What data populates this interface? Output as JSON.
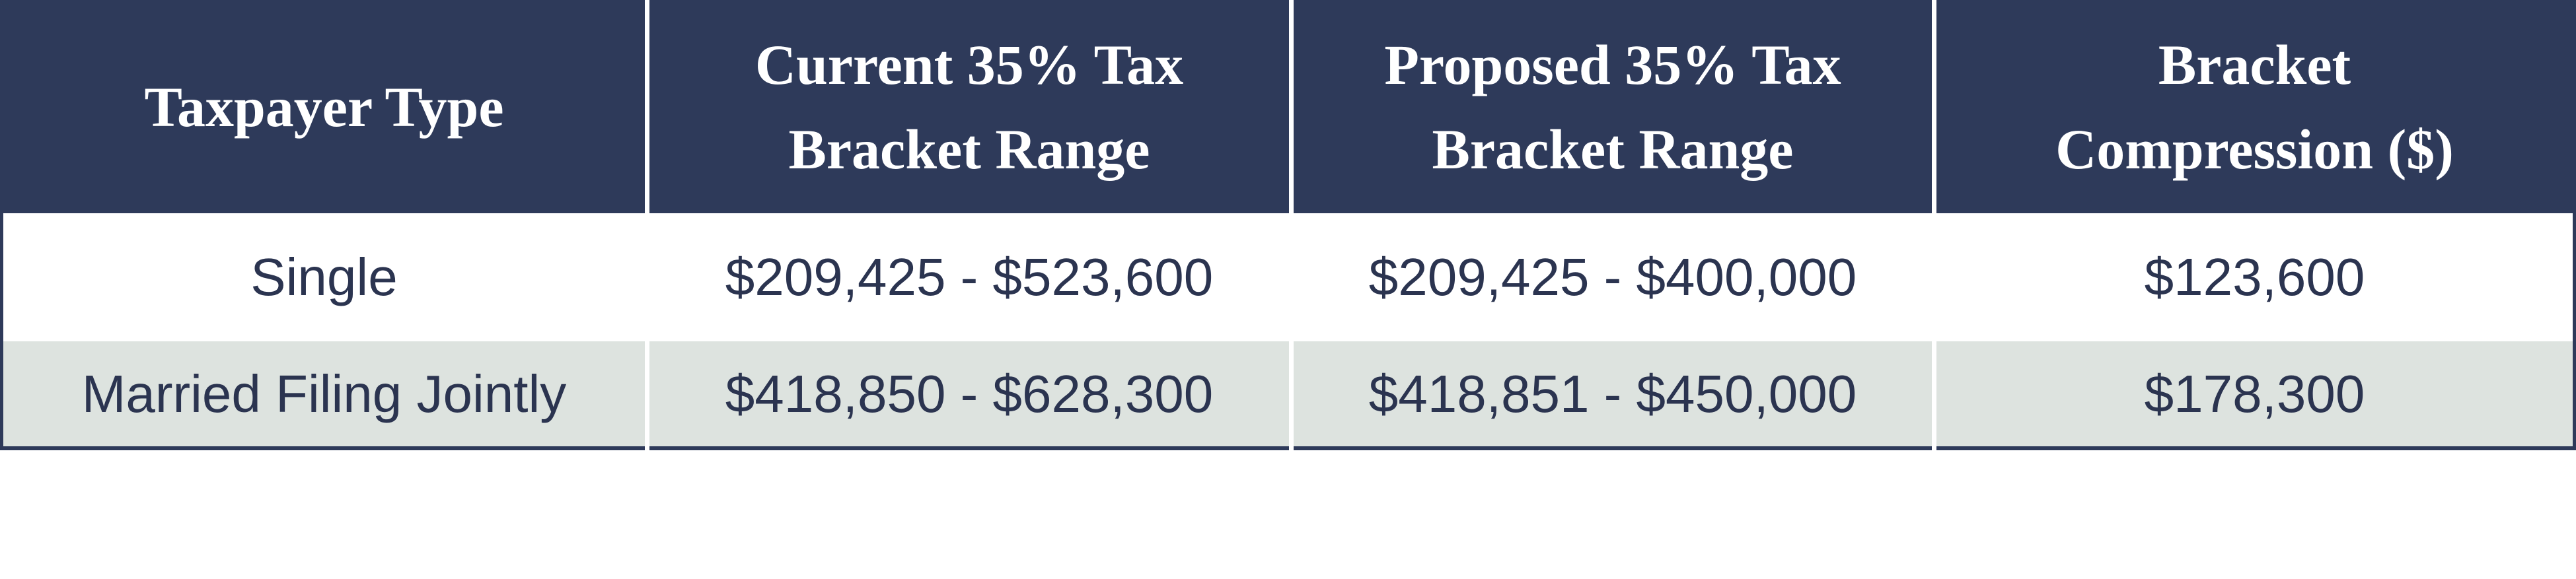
{
  "table": {
    "header": [
      "Taxpayer Type",
      "Current 35% Tax Bracket Range",
      "Proposed 35% Tax Bracket Range",
      "Bracket Compression ($)"
    ],
    "rows": [
      [
        "Single",
        "$209,425 - $523,600",
        "$209,425 - $400,000",
        "$123,600"
      ],
      [
        "Married Filing Jointly",
        "$418,850 - $628,300",
        "$418,851 - $450,000",
        "$178,300"
      ]
    ]
  }
}
